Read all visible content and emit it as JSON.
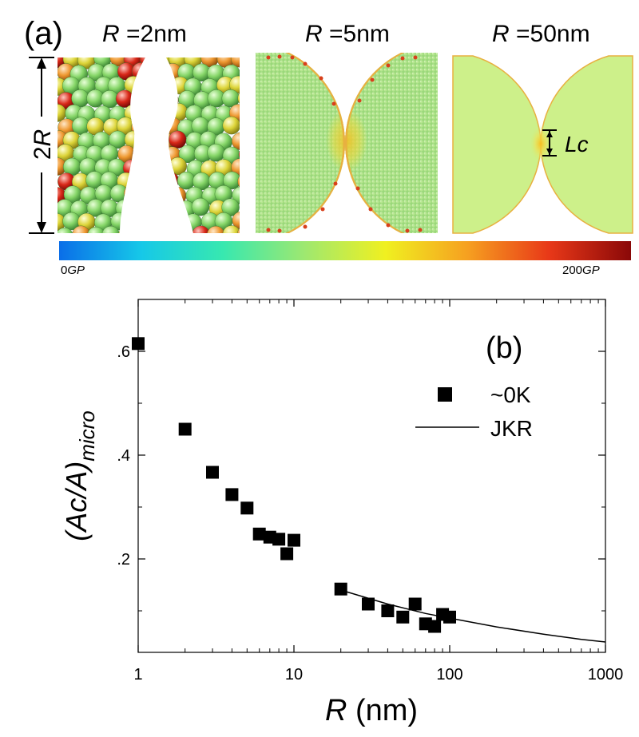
{
  "panel_a": {
    "label": "(a)",
    "titles": [
      {
        "var": "R",
        "text": " =2nm"
      },
      {
        "var": "R",
        "text": " =5nm"
      },
      {
        "var": "R",
        "text": " =50nm"
      }
    ],
    "dimension_label": {
      "num": "2",
      "var": "R"
    },
    "contact_label": "Lc",
    "colorbar": {
      "min_label": {
        "num": "0",
        "unit": "GP"
      },
      "max_label": {
        "num": "200",
        "unit": "GP"
      },
      "stops": [
        "#0a6ee8",
        "#16c8e8",
        "#37e8b0",
        "#9ee870",
        "#f0f020",
        "#f6a020",
        "#e83818",
        "#8a0808"
      ]
    }
  },
  "chart_data": {
    "type": "scatter",
    "panel_label": "(b)",
    "xlabel": {
      "var": "R",
      "unit": " (nm)"
    },
    "ylabel": {
      "main": "(Ac/A)",
      "sub": "micro"
    },
    "xscale": "log",
    "xlim": [
      1,
      1000
    ],
    "ylim": [
      0.02,
      0.7
    ],
    "xticks": [
      1,
      10,
      100,
      1000
    ],
    "xtick_labels": [
      "1",
      "10",
      "100",
      "1000"
    ],
    "yticks": [
      0.2,
      0.4,
      0.6
    ],
    "ytick_labels": [
      ".2",
      ".4",
      ".6"
    ],
    "legend": {
      "position": "top-right",
      "entries": [
        "~0K",
        "JKR"
      ]
    },
    "series": [
      {
        "name": "~0K",
        "kind": "markers",
        "x": [
          1,
          2,
          3,
          4,
          5,
          6,
          7,
          8,
          9,
          10,
          20,
          30,
          40,
          50,
          60,
          70,
          80,
          90,
          100
        ],
        "y": [
          0.615,
          0.45,
          0.367,
          0.324,
          0.298,
          0.248,
          0.242,
          0.238,
          0.21,
          0.236,
          0.142,
          0.113,
          0.1,
          0.088,
          0.113,
          0.075,
          0.07,
          0.093,
          0.088
        ]
      },
      {
        "name": "JKR",
        "kind": "line",
        "x": [
          20,
          40,
          70,
          100,
          200,
          400,
          700,
          1000
        ],
        "y": [
          0.14,
          0.113,
          0.095,
          0.086,
          0.069,
          0.055,
          0.045,
          0.04
        ]
      }
    ]
  }
}
